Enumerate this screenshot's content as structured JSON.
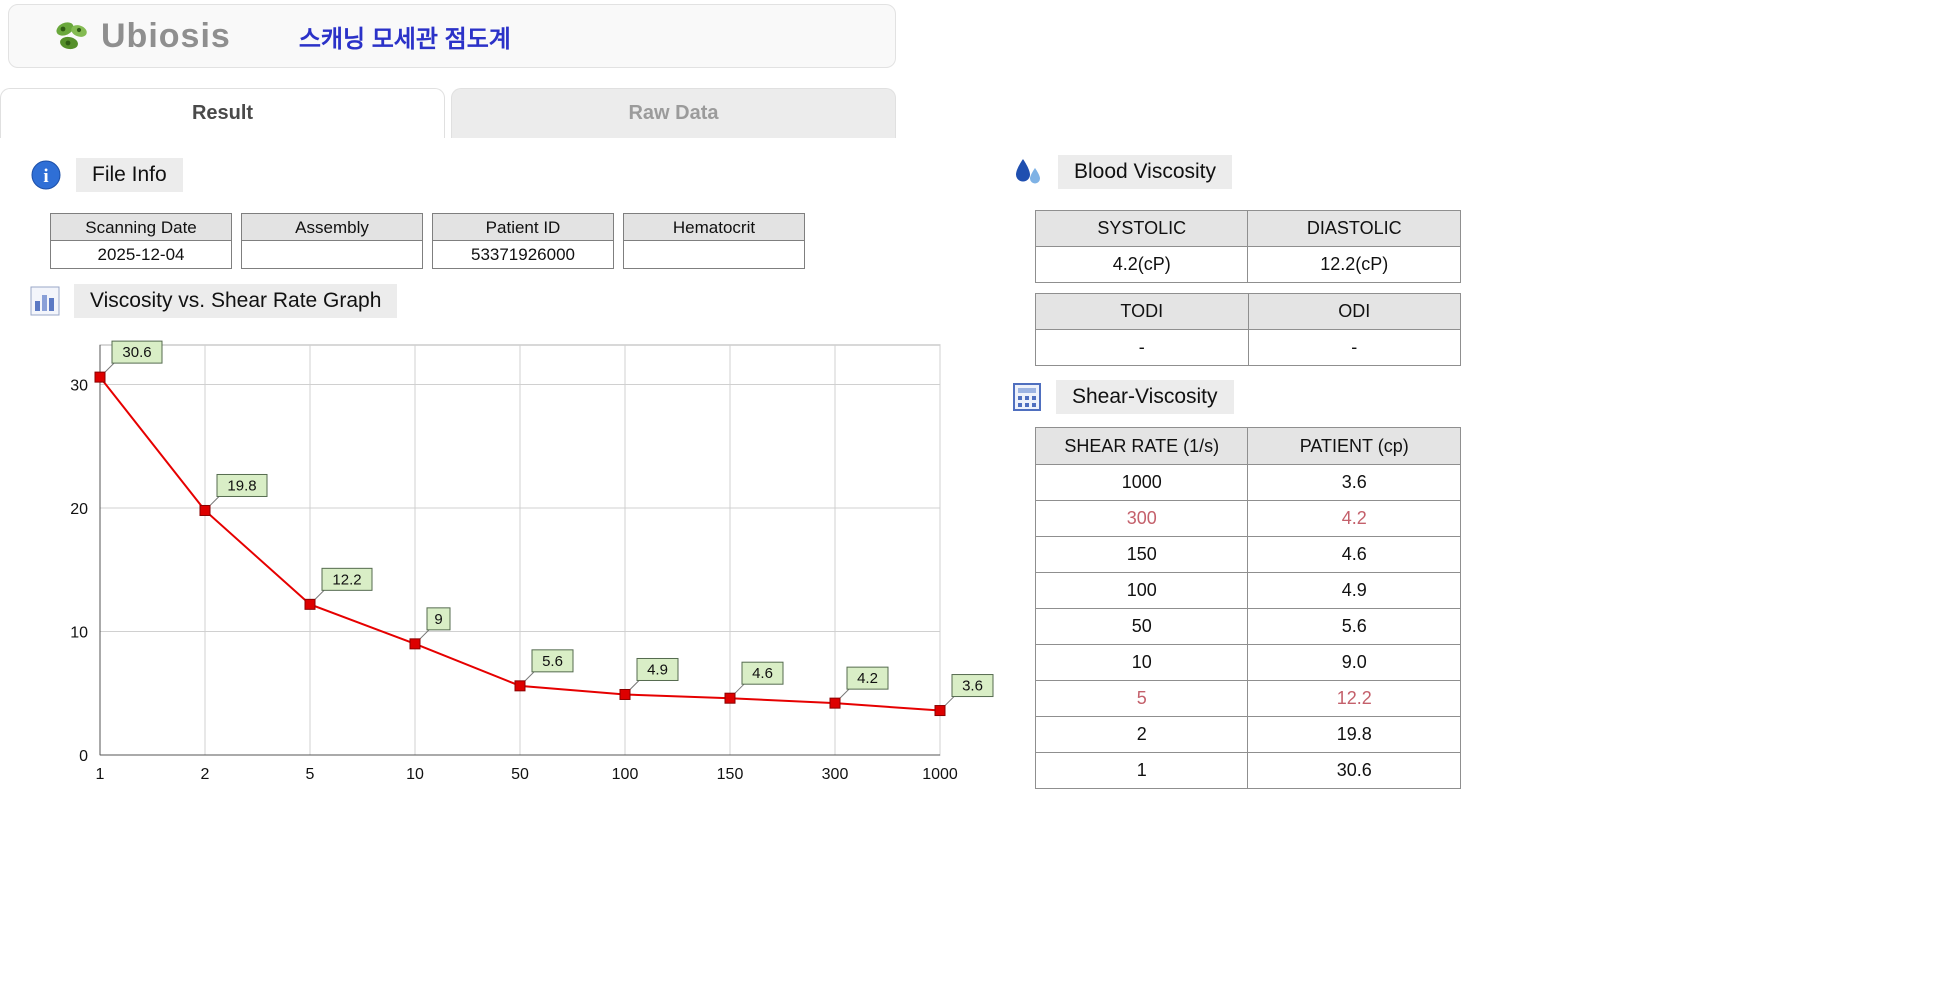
{
  "header": {
    "logo_text": "Ubiosis",
    "app_title": "스캐닝 모세관 점도계"
  },
  "tabs": [
    {
      "label": "Result",
      "active": true
    },
    {
      "label": "Raw Data",
      "active": false
    }
  ],
  "file_info": {
    "section_title": "File Info",
    "columns": [
      {
        "header": "Scanning Date",
        "value": "2025-12-04"
      },
      {
        "header": "Assembly",
        "value": ""
      },
      {
        "header": "Patient ID",
        "value": "53371926000"
      },
      {
        "header": "Hematocrit",
        "value": ""
      }
    ]
  },
  "graph_section": {
    "title": "Viscosity vs. Shear Rate Graph"
  },
  "chart_data": {
    "type": "line",
    "title": "Viscosity vs. Shear Rate Graph",
    "xlabel": "",
    "ylabel": "",
    "categories": [
      "1",
      "2",
      "5",
      "10",
      "50",
      "100",
      "150",
      "300",
      "1000"
    ],
    "values": [
      30.6,
      19.8,
      12.2,
      9,
      5.6,
      4.9,
      4.6,
      4.2,
      3.6
    ],
    "point_labels": [
      "30.6",
      "19.8",
      "12.2",
      "9",
      "5.6",
      "4.9",
      "4.6",
      "4.2",
      "3.6"
    ],
    "yticks": [
      0,
      10,
      20,
      30
    ],
    "ylim": [
      0,
      33.2
    ],
    "grid": true,
    "legend": "none",
    "line_color": "#e60000",
    "marker_color": "#dd0000",
    "marker_edge": "#8b0000",
    "label_bg": "#d9eec6",
    "label_border": "#556b4f"
  },
  "blood_viscosity": {
    "section_title": "Blood Viscosity",
    "table1": {
      "headers": [
        "SYSTOLIC",
        "DIASTOLIC"
      ],
      "values": [
        "4.2(cP)",
        "12.2(cP)"
      ]
    },
    "table2": {
      "headers": [
        "TODI",
        "ODI"
      ],
      "values": [
        "-",
        "-"
      ]
    }
  },
  "shear_viscosity": {
    "section_title": "Shear-Viscosity",
    "headers": [
      "SHEAR RATE (1/s)",
      "PATIENT (cp)"
    ],
    "rows": [
      {
        "shear": "1000",
        "patient": "3.6",
        "highlight": false
      },
      {
        "shear": "300",
        "patient": "4.2",
        "highlight": true
      },
      {
        "shear": "150",
        "patient": "4.6",
        "highlight": false
      },
      {
        "shear": "100",
        "patient": "4.9",
        "highlight": false
      },
      {
        "shear": "50",
        "patient": "5.6",
        "highlight": false
      },
      {
        "shear": "10",
        "patient": "9.0",
        "highlight": false
      },
      {
        "shear": "5",
        "patient": "12.2",
        "highlight": true
      },
      {
        "shear": "2",
        "patient": "19.8",
        "highlight": false
      },
      {
        "shear": "1",
        "patient": "30.6",
        "highlight": false
      }
    ]
  }
}
